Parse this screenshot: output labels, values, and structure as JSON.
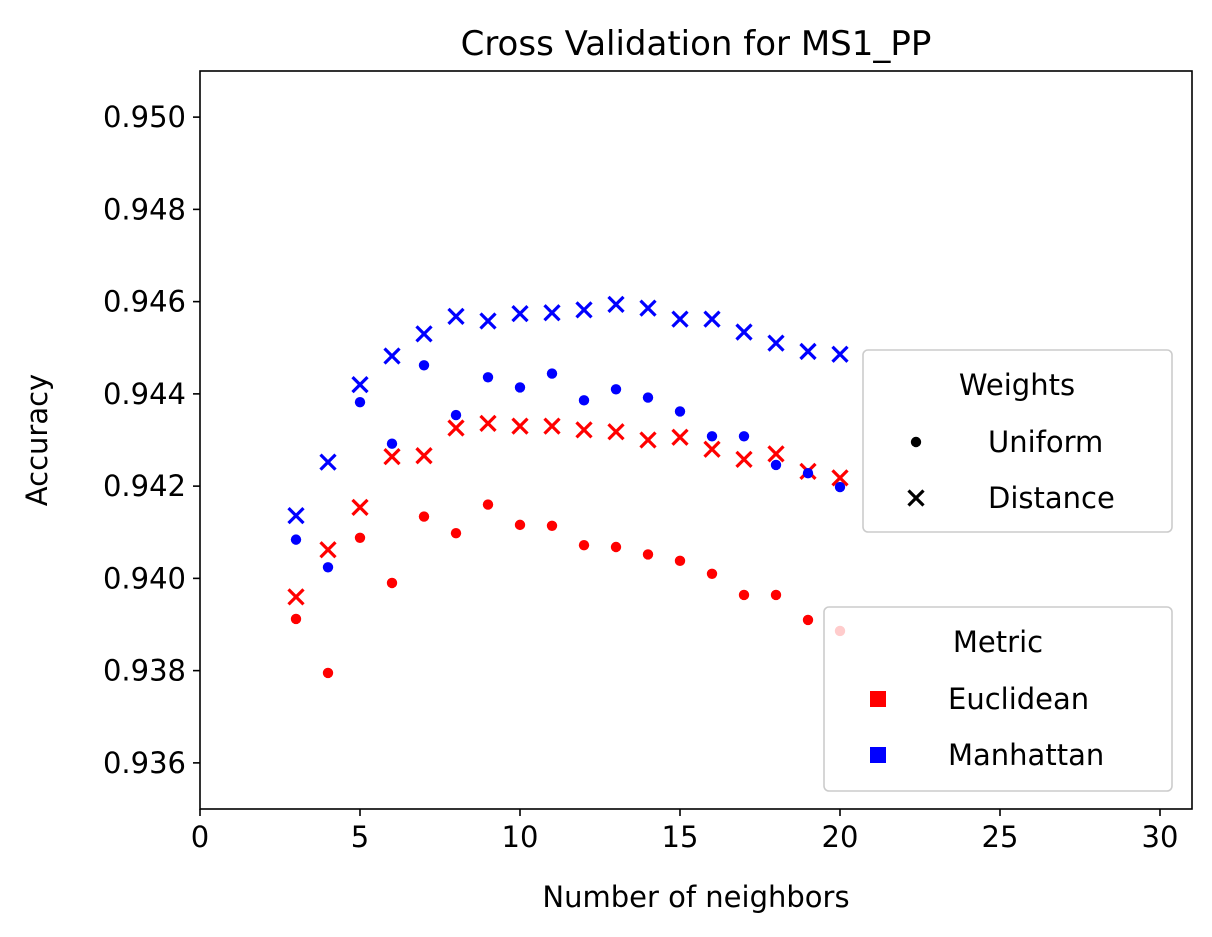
{
  "chart_data": {
    "type": "scatter",
    "title": "Cross Validation for MS1_PP",
    "xlabel": "Number of neighbors",
    "ylabel": "Accuracy",
    "xlim": [
      0,
      31
    ],
    "ylim": [
      0.935,
      0.951
    ],
    "xticks": [
      0,
      5,
      10,
      15,
      20,
      25,
      30
    ],
    "yticks": [
      0.936,
      0.938,
      0.94,
      0.942,
      0.944,
      0.946,
      0.948,
      0.95
    ],
    "xtick_labels": [
      "0",
      "5",
      "10",
      "15",
      "20",
      "25",
      "30"
    ],
    "ytick_labels": [
      "0.936",
      "0.938",
      "0.940",
      "0.942",
      "0.944",
      "0.946",
      "0.948",
      "0.950"
    ],
    "grid": false,
    "x": [
      3,
      4,
      5,
      6,
      7,
      8,
      9,
      10,
      11,
      12,
      13,
      14,
      15,
      16,
      17,
      18,
      19,
      20
    ],
    "series": [
      {
        "metric": "Euclidean",
        "weights": "Uniform",
        "color": "#ff0000",
        "marker": "dot",
        "values": [
          0.93912,
          0.93795,
          0.94088,
          0.9399,
          0.94134,
          0.94098,
          0.9416,
          0.94116,
          0.94114,
          0.94072,
          0.94068,
          0.94052,
          0.94038,
          0.9401,
          0.93964,
          0.93964,
          0.9391,
          0.93886
        ]
      },
      {
        "metric": "Euclidean",
        "weights": "Distance",
        "color": "#ff0000",
        "marker": "x",
        "values": [
          0.9396,
          0.94062,
          0.94154,
          0.94264,
          0.94266,
          0.94326,
          0.94336,
          0.9433,
          0.9433,
          0.94322,
          0.94318,
          0.943,
          0.94306,
          0.9428,
          0.94258,
          0.9427,
          0.94232,
          0.94218
        ]
      },
      {
        "metric": "Manhattan",
        "weights": "Uniform",
        "color": "#0000ff",
        "marker": "dot",
        "values": [
          0.94084,
          0.94024,
          0.94382,
          0.94292,
          0.94462,
          0.94354,
          0.94436,
          0.94414,
          0.94444,
          0.94386,
          0.9441,
          0.94392,
          0.94362,
          0.94308,
          0.94308,
          0.94246,
          0.94228,
          0.94198
        ]
      },
      {
        "metric": "Manhattan",
        "weights": "Distance",
        "color": "#0000ff",
        "marker": "x",
        "values": [
          0.94136,
          0.94252,
          0.9442,
          0.94482,
          0.9453,
          0.94568,
          0.94558,
          0.94574,
          0.94576,
          0.94582,
          0.94594,
          0.94586,
          0.94562,
          0.94562,
          0.94534,
          0.9451,
          0.94492,
          0.94486
        ]
      }
    ],
    "legends": [
      {
        "title": "Weights",
        "placement": "center-right",
        "entries": [
          {
            "label": "Uniform",
            "marker": "dot",
            "color": "#000000"
          },
          {
            "label": "Distance",
            "marker": "x",
            "color": "#000000"
          }
        ]
      },
      {
        "title": "Metric",
        "placement": "lower-right",
        "entries": [
          {
            "label": "Euclidean",
            "marker": "square",
            "color": "#ff0000"
          },
          {
            "label": "Manhattan",
            "marker": "square",
            "color": "#0000ff"
          }
        ]
      }
    ]
  }
}
